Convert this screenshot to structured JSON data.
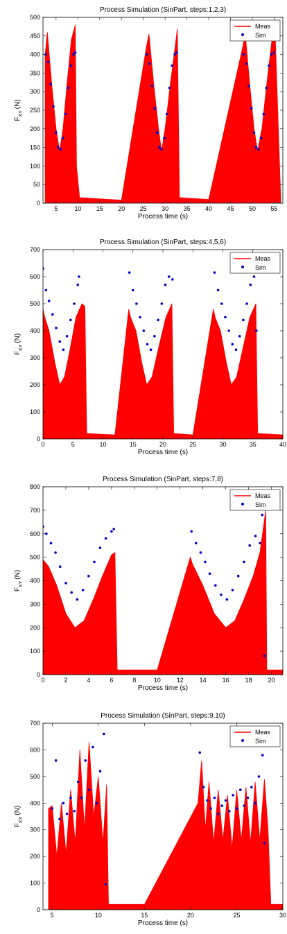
{
  "chart_data": [
    {
      "type": "line",
      "title": "Process Simulation (SinPart, steps:1,2,3)",
      "xlabel": "Process time (s)",
      "ylabel": "F_XY (N)",
      "xlim": [
        2,
        57
      ],
      "ylim": [
        0,
        500
      ],
      "xticks": [
        5,
        10,
        15,
        20,
        25,
        30,
        35,
        40,
        45,
        50,
        55
      ],
      "yticks": [
        0,
        50,
        100,
        150,
        200,
        250,
        300,
        350,
        400,
        450,
        500
      ],
      "legend": "top-right",
      "grid": false,
      "series": [
        {
          "name": "Meas",
          "color": "#ff0000",
          "x": [
            2.5,
            3.0,
            4.0,
            5.0,
            5.8,
            6.6,
            7.5,
            8.5,
            9.4,
            9.7,
            10.4,
            20.0,
            25.7,
            26.3,
            27.4,
            28.5,
            29.2,
            30.0,
            31.2,
            32.5,
            32.8,
            33.3,
            40.0,
            47.8,
            48.4,
            49.4,
            50.4,
            51.2,
            52.2,
            53.3,
            54.5,
            55.2,
            56.5
          ],
          "y": [
            400,
            460,
            320,
            200,
            140,
            200,
            320,
            440,
            480,
            100,
            15,
            8,
            420,
            455,
            320,
            200,
            140,
            200,
            320,
            440,
            470,
            15,
            10,
            420,
            455,
            320,
            200,
            140,
            200,
            320,
            440,
            470,
            15
          ]
        },
        {
          "name": "Sim",
          "color": "#0000cc",
          "x": [
            2.6,
            3.2,
            3.8,
            4.4,
            5.0,
            5.5,
            6.0,
            6.6,
            7.2,
            7.8,
            8.4,
            9.0,
            9.4,
            25.8,
            26.4,
            27.0,
            27.6,
            28.2,
            28.7,
            29.2,
            29.8,
            30.4,
            31.0,
            31.6,
            32.2,
            32.7,
            48.0,
            48.6,
            49.2,
            49.8,
            50.4,
            50.9,
            51.4,
            52.0,
            52.6,
            53.2,
            53.8,
            54.4,
            55.0
          ],
          "y": [
            400,
            380,
            320,
            260,
            190,
            150,
            145,
            175,
            240,
            310,
            370,
            400,
            405,
            400,
            375,
            315,
            255,
            190,
            150,
            145,
            175,
            240,
            310,
            370,
            400,
            405,
            400,
            375,
            315,
            255,
            190,
            150,
            145,
            175,
            240,
            310,
            370,
            400,
            405
          ]
        }
      ]
    },
    {
      "type": "line",
      "title": "Process Simulation (SinPart, steps:4,5,6)",
      "xlabel": "Process time (s)",
      "ylabel": "F_XY (N)",
      "xlim": [
        0,
        40
      ],
      "ylim": [
        0,
        700
      ],
      "xticks": [
        0,
        5,
        10,
        15,
        20,
        25,
        30,
        35,
        40
      ],
      "yticks": [
        0,
        100,
        200,
        300,
        400,
        500,
        600,
        700
      ],
      "legend": "top-right",
      "grid": false,
      "series": [
        {
          "name": "Meas",
          "color": "#ff0000",
          "x": [
            0.0,
            0.3,
            1.0,
            2.0,
            2.8,
            3.6,
            4.5,
            5.5,
            6.5,
            7.0,
            7.3,
            12.0,
            14.3,
            14.6,
            15.5,
            16.5,
            17.3,
            18.2,
            19.2,
            20.5,
            21.5,
            21.8,
            25.0,
            28.4,
            28.7,
            29.6,
            30.6,
            31.4,
            32.3,
            33.3,
            34.5,
            35.5,
            35.8,
            40.0
          ],
          "y": [
            480,
            450,
            400,
            280,
            200,
            230,
            330,
            450,
            500,
            490,
            20,
            15,
            480,
            450,
            400,
            280,
            200,
            230,
            330,
            450,
            500,
            20,
            15,
            480,
            450,
            400,
            280,
            200,
            230,
            330,
            450,
            500,
            20,
            15
          ]
        },
        {
          "name": "Sim",
          "color": "#0000cc",
          "x": [
            0.0,
            0.5,
            1.0,
            1.6,
            2.2,
            2.8,
            3.4,
            4.0,
            4.6,
            5.2,
            5.8,
            6.0,
            14.4,
            15.0,
            15.6,
            16.2,
            16.8,
            17.4,
            18.0,
            18.6,
            19.2,
            19.8,
            20.4,
            21.0,
            21.6,
            28.6,
            29.2,
            29.8,
            30.4,
            31.0,
            31.6,
            32.2,
            32.8,
            33.4,
            34.0,
            34.6,
            35.2,
            35.6
          ],
          "y": [
            630,
            550,
            510,
            460,
            410,
            360,
            330,
            380,
            440,
            500,
            570,
            600,
            615,
            550,
            500,
            450,
            400,
            350,
            330,
            380,
            440,
            500,
            570,
            600,
            590,
            615,
            550,
            500,
            450,
            400,
            350,
            330,
            380,
            440,
            500,
            570,
            600,
            400
          ]
        }
      ]
    },
    {
      "type": "line",
      "title": "Process Simulation (SinPart, steps:7,8)",
      "xlabel": "Process time (s)",
      "ylabel": "F_XY (N)",
      "xlim": [
        0,
        21
      ],
      "ylim": [
        0,
        800
      ],
      "xticks": [
        0,
        2,
        4,
        6,
        8,
        10,
        12,
        14,
        16,
        18,
        20
      ],
      "yticks": [
        0,
        100,
        200,
        300,
        400,
        500,
        600,
        700,
        800
      ],
      "legend": "top-right",
      "grid": false,
      "series": [
        {
          "name": "Meas",
          "color": "#ff0000",
          "x": [
            0.0,
            0.5,
            1.2,
            2.0,
            2.8,
            3.6,
            4.4,
            5.2,
            6.0,
            6.3,
            6.5,
            10.0,
            12.9,
            13.1,
            14.0,
            15.0,
            16.0,
            16.8,
            17.6,
            18.4,
            19.0,
            19.5,
            19.6,
            21.0
          ],
          "y": [
            490,
            460,
            380,
            260,
            200,
            230,
            320,
            420,
            510,
            520,
            20,
            20,
            500,
            470,
            380,
            260,
            200,
            230,
            320,
            420,
            520,
            700,
            20,
            20
          ]
        },
        {
          "name": "Sim",
          "color": "#0000cc",
          "x": [
            0.0,
            0.3,
            0.7,
            1.1,
            1.5,
            2.0,
            2.5,
            3.0,
            3.5,
            4.0,
            4.5,
            5.0,
            5.5,
            6.0,
            6.2,
            13.0,
            13.4,
            13.8,
            14.2,
            14.6,
            15.1,
            15.6,
            16.1,
            16.6,
            17.1,
            17.6,
            18.1,
            18.6,
            19.0,
            19.2,
            19.4
          ],
          "y": [
            630,
            600,
            560,
            520,
            460,
            390,
            350,
            320,
            360,
            420,
            480,
            540,
            580,
            610,
            620,
            610,
            560,
            520,
            480,
            430,
            380,
            340,
            320,
            360,
            420,
            480,
            550,
            590,
            560,
            680,
            80
          ]
        }
      ]
    },
    {
      "type": "line",
      "title": "Process Simulation (SinPart, steps:9,10)",
      "xlabel": "Process time (s)",
      "ylabel": "F_XY (N)",
      "xlim": [
        4,
        30
      ],
      "ylim": [
        0,
        700
      ],
      "xticks": [
        5,
        10,
        15,
        20,
        25,
        30
      ],
      "yticks": [
        0,
        100,
        200,
        300,
        400,
        500,
        600,
        700
      ],
      "legend": "top-right",
      "grid": false,
      "series": [
        {
          "name": "Meas",
          "color": "#ff0000",
          "x": [
            4.6,
            5.0,
            5.5,
            6.0,
            6.5,
            7.0,
            7.5,
            8.0,
            8.5,
            9.0,
            9.5,
            10.0,
            10.5,
            10.9,
            11.1,
            15.0,
            20.8,
            21.2,
            21.6,
            22.0,
            22.5,
            23.0,
            23.5,
            24.0,
            24.5,
            25.0,
            25.5,
            26.0,
            26.5,
            27.0,
            27.5,
            28.0,
            28.4,
            28.7,
            30.0
          ],
          "y": [
            380,
            390,
            200,
            400,
            210,
            450,
            250,
            600,
            300,
            630,
            350,
            500,
            250,
            470,
            20,
            20,
            400,
            560,
            300,
            480,
            250,
            450,
            260,
            430,
            230,
            450,
            260,
            460,
            250,
            480,
            260,
            490,
            300,
            20,
            20
          ]
        },
        {
          "name": "Sim",
          "color": "#0000cc",
          "x": [
            5.0,
            5.4,
            5.8,
            6.2,
            6.6,
            7.0,
            7.4,
            7.8,
            8.2,
            8.6,
            9.0,
            9.4,
            9.8,
            10.2,
            10.6,
            10.8,
            21.0,
            21.4,
            21.8,
            22.2,
            22.6,
            23.0,
            23.4,
            23.8,
            24.2,
            24.6,
            25.0,
            25.4,
            25.8,
            26.2,
            26.6,
            27.0,
            27.4,
            27.8,
            28.0
          ],
          "y": [
            380,
            560,
            340,
            400,
            360,
            420,
            370,
            480,
            420,
            560,
            450,
            610,
            400,
            520,
            660,
            95,
            590,
            460,
            410,
            380,
            420,
            360,
            390,
            410,
            370,
            430,
            380,
            450,
            390,
            420,
            460,
            400,
            500,
            580,
            250
          ]
        }
      ]
    }
  ]
}
